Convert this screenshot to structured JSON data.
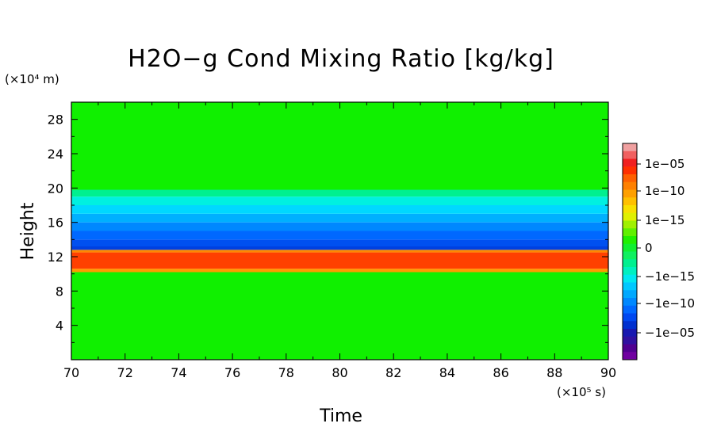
{
  "chart_data": {
    "type": "heatmap",
    "title": "H2O−g Cond Mixing Ratio [kg/kg]",
    "xlabel": "Time",
    "ylabel": "Height",
    "x_unit_label": "(×10⁵ s)",
    "y_unit_label": "(×10⁴ m)",
    "xlim": [
      70,
      90
    ],
    "ylim": [
      0,
      30
    ],
    "x_ticks": [
      "70",
      "72",
      "74",
      "76",
      "78",
      "80",
      "82",
      "84",
      "86",
      "88",
      "90"
    ],
    "y_ticks": [
      "4",
      "8",
      "12",
      "16",
      "20",
      "24",
      "28"
    ],
    "y_tick_values": [
      4,
      8,
      12,
      16,
      20,
      24,
      28
    ],
    "x_tick_values": [
      70,
      72,
      74,
      76,
      78,
      80,
      82,
      84,
      86,
      88,
      90
    ],
    "bands": [
      {
        "y0": 0,
        "y1": 10.2,
        "color": "#10f000"
      },
      {
        "y0": 10.2,
        "y1": 10.6,
        "color": "#ff9a00"
      },
      {
        "y0": 10.6,
        "y1": 12.5,
        "color": "#ff4000"
      },
      {
        "y0": 12.5,
        "y1": 12.8,
        "color": "#ff8800"
      },
      {
        "y0": 12.8,
        "y1": 13.2,
        "color": "#0040e0"
      },
      {
        "y0": 13.2,
        "y1": 14.0,
        "color": "#0050f0"
      },
      {
        "y0": 14.0,
        "y1": 15.0,
        "color": "#0068ff"
      },
      {
        "y0": 15.0,
        "y1": 16.0,
        "color": "#0088ff"
      },
      {
        "y0": 16.0,
        "y1": 17.0,
        "color": "#00b0ff"
      },
      {
        "y0": 17.0,
        "y1": 18.0,
        "color": "#00d8ff"
      },
      {
        "y0": 18.0,
        "y1": 19.0,
        "color": "#00f0e0"
      },
      {
        "y0": 19.0,
        "y1": 19.8,
        "color": "#00f090"
      },
      {
        "y0": 19.8,
        "y1": 30.0,
        "color": "#10f000"
      }
    ],
    "colorbar": {
      "labels": [
        "1e−05",
        "1e−10",
        "1e−15",
        "0",
        "−1e−15",
        "−1e−10",
        "−1e−05"
      ],
      "colors": [
        "#f0a0a0",
        "#f06060",
        "#f02020",
        "#ff3000",
        "#ff6000",
        "#ff8000",
        "#ffa000",
        "#ffc000",
        "#f8e000",
        "#e0f000",
        "#a0f000",
        "#60f000",
        "#20f000",
        "#10f030",
        "#10f060",
        "#00f090",
        "#00f0c0",
        "#00e8f0",
        "#00c8ff",
        "#00a8ff",
        "#0088ff",
        "#0068ff",
        "#0048f0",
        "#0030d0",
        "#1818b0",
        "#3010a0",
        "#500090",
        "#7000a0"
      ]
    }
  }
}
